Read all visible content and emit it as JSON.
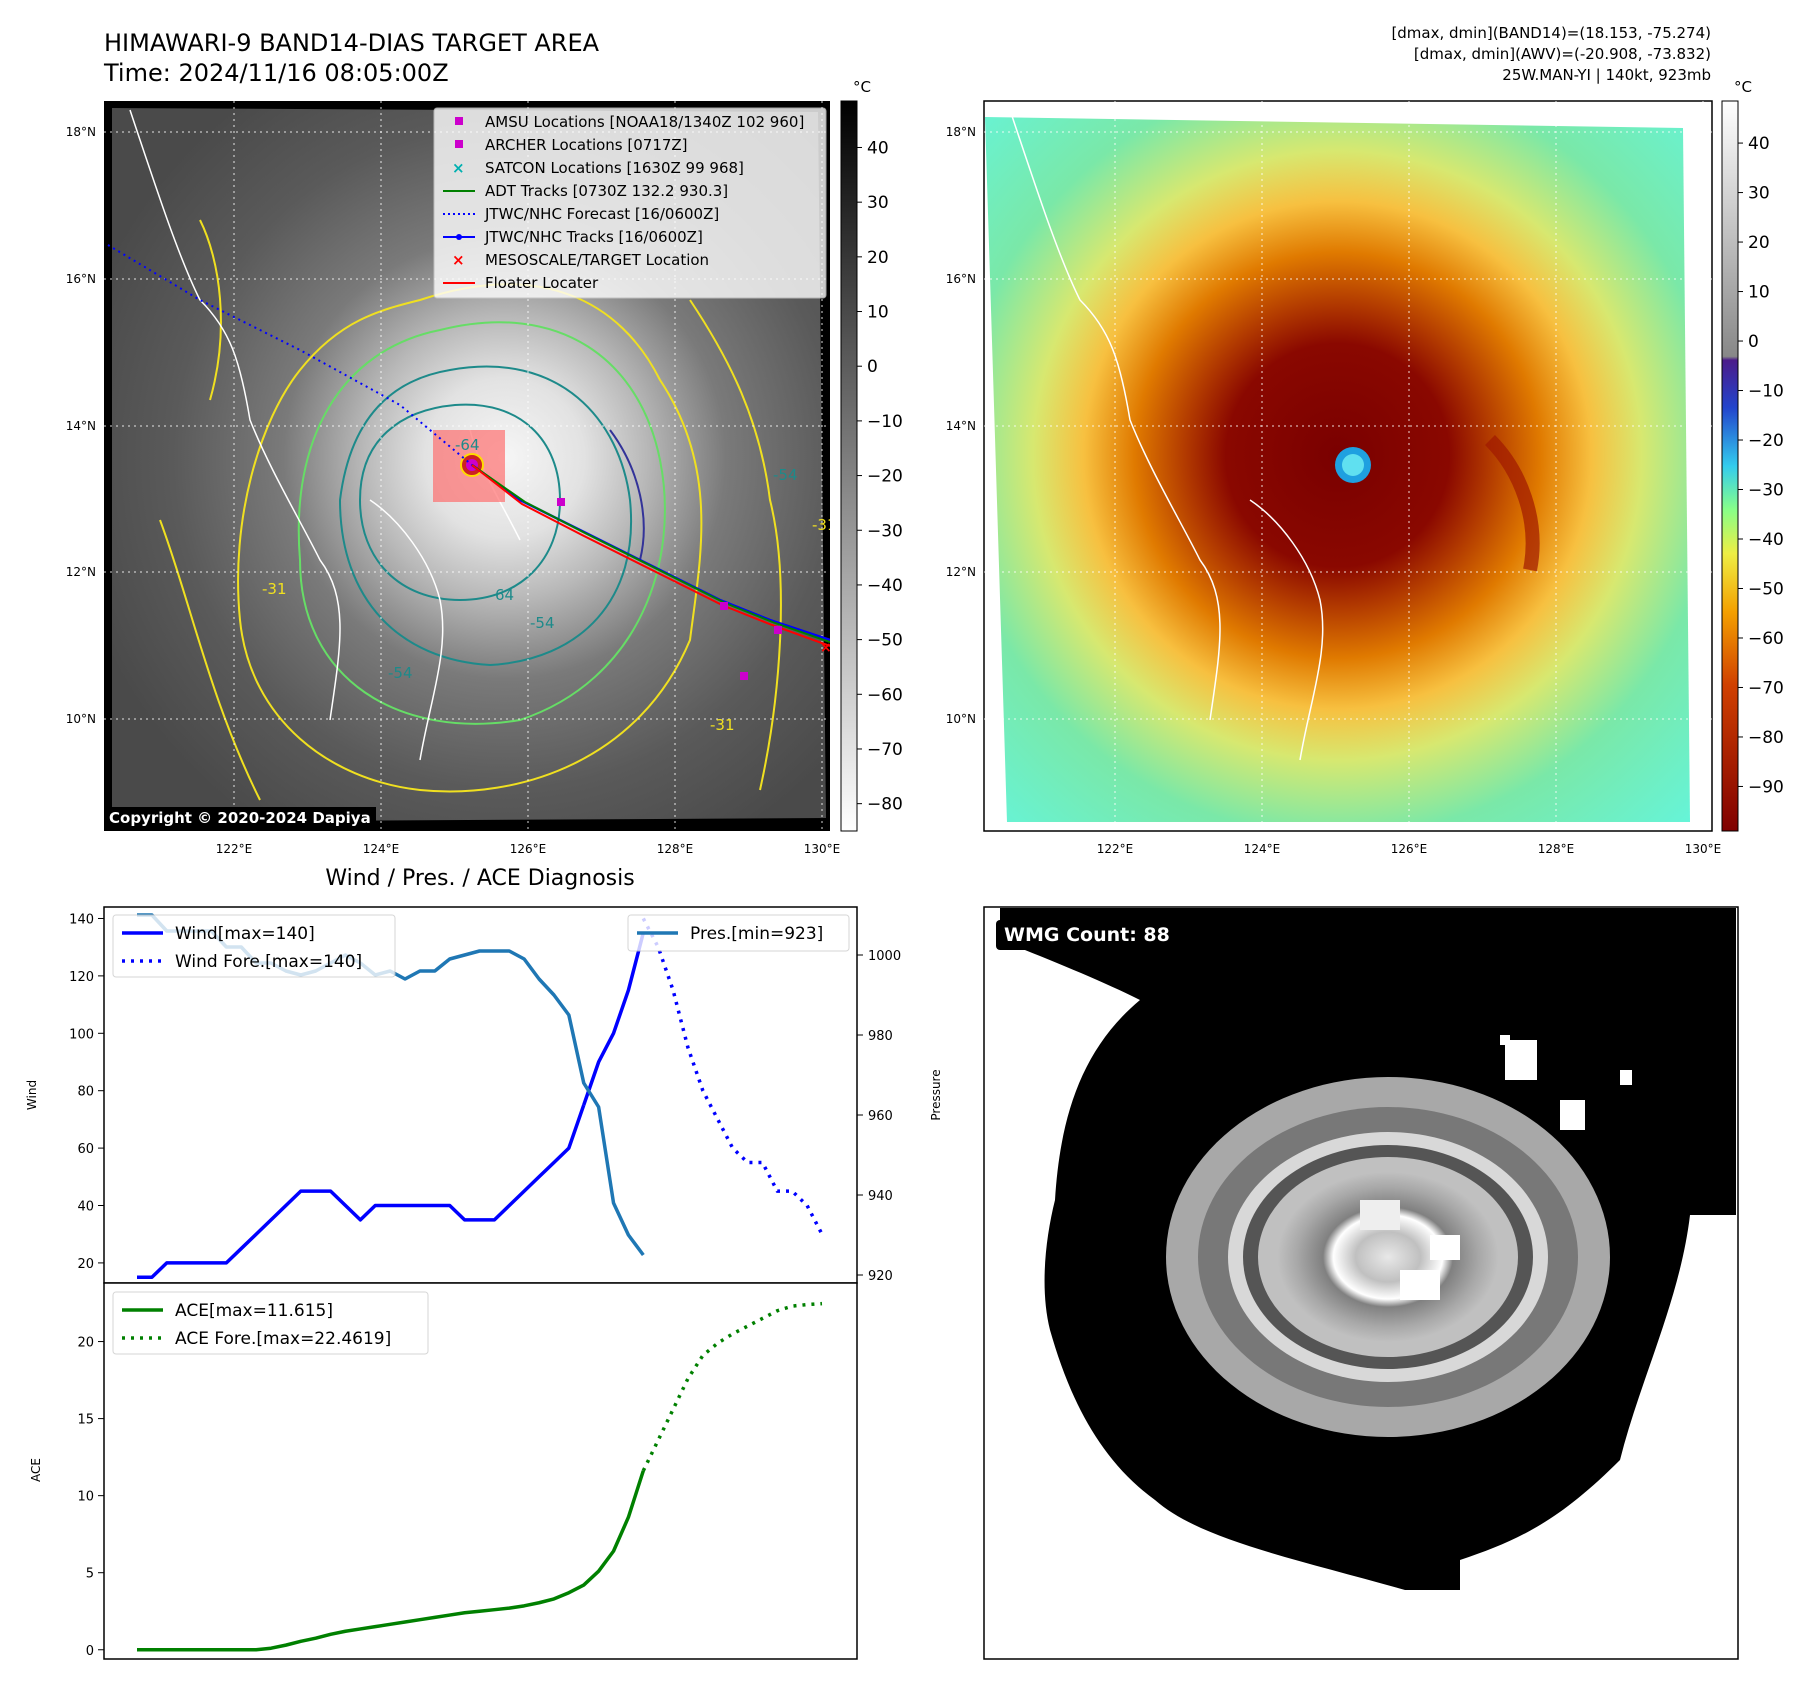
{
  "header": {
    "title_line1": "HIMAWARI-9 BAND14-DIAS TARGET AREA",
    "title_line2": "Time: 2024/11/16 08:05:00Z",
    "info_line1": "[dmax, dmin](BAND14)=(18.153, -75.274)",
    "info_line2": "[dmax, dmin](AWV)=(-20.908, -73.832)",
    "info_line3": "25W.MAN-YI | 140kt, 923mb"
  },
  "copyright": "Copyright © 2020-2024 Dapiya",
  "map": {
    "lat_labels": [
      "18°N",
      "16°N",
      "14°N",
      "12°N",
      "10°N"
    ],
    "lon_labels": [
      "122°E",
      "124°E",
      "126°E",
      "128°E",
      "130°E"
    ],
    "contour_labels": [
      "-64",
      "-54",
      "-54",
      "64",
      "-54",
      "-31",
      "-31",
      "-31"
    ],
    "legend": [
      {
        "label": "AMSU Locations [NOAA18/1340Z 102 960]",
        "color": "#cc00cc",
        "marker": "square"
      },
      {
        "label": "ARCHER Locations [0717Z]",
        "color": "#cc00cc",
        "marker": "square"
      },
      {
        "label": "SATCON Locations [1630Z 99 968]",
        "color": "#00b0b0",
        "marker": "x"
      },
      {
        "label": "ADT Tracks [0730Z 132.2 930.3]",
        "color": "#008000",
        "marker": "line"
      },
      {
        "label": "JTWC/NHC Forecast [16/0600Z]",
        "color": "#0000ff",
        "marker": "dotted"
      },
      {
        "label": "JTWC/NHC Tracks [16/0600Z]",
        "color": "#0000ff",
        "marker": "dotline"
      },
      {
        "label": "MESOSCALE/TARGET Location",
        "color": "#ff0000",
        "marker": "x"
      },
      {
        "label": "Floater Locater",
        "color": "#ff0000",
        "marker": "line"
      }
    ],
    "left_colorbar": {
      "unit": "°C",
      "ticks": [
        "40",
        "30",
        "20",
        "10",
        "0",
        "−10",
        "−20",
        "−30",
        "−40",
        "−50",
        "−60",
        "−70",
        "−80"
      ]
    },
    "right_colorbar": {
      "unit": "°C",
      "ticks": [
        "40",
        "30",
        "20",
        "10",
        "0",
        "−10",
        "−20",
        "−30",
        "−40",
        "−50",
        "−60",
        "−70",
        "−80",
        "−90"
      ]
    }
  },
  "diagnosis_title": "Wind / Pres. / ACE Diagnosis",
  "wmg_badge": "WMG Count: 88",
  "chart_data": [
    {
      "type": "line",
      "title": "Wind / Pres. / ACE Diagnosis",
      "ylabel": "Wind",
      "ylabel_right": "Pressure",
      "ylim": [
        13,
        144
      ],
      "ylim_right": [
        918,
        1012
      ],
      "y_ticks": [
        "140",
        "120",
        "100",
        "80",
        "60",
        "40",
        "20"
      ],
      "y_ticks_right": [
        "1000",
        "980",
        "960",
        "940",
        "920"
      ],
      "x": [
        0,
        1,
        2,
        3,
        4,
        5,
        6,
        7,
        8,
        9,
        10,
        11,
        12,
        13,
        14,
        15,
        16,
        17,
        18,
        19,
        20,
        21,
        22,
        23,
        24,
        25,
        26,
        27,
        28,
        29,
        30,
        31,
        32,
        33,
        34,
        35,
        36,
        37,
        38,
        39,
        40,
        41,
        42,
        43,
        44,
        45,
        46
      ],
      "series": [
        {
          "name": "Wind",
          "legend": "Wind[max=140]",
          "color": "#0000ff",
          "style": "solid",
          "x": [
            0,
            1,
            2,
            3,
            4,
            5,
            6,
            7,
            8,
            9,
            10,
            11,
            12,
            13,
            14,
            15,
            16,
            17,
            18,
            19,
            20,
            21,
            22,
            23,
            24,
            25,
            26,
            27,
            28,
            29,
            30
          ],
          "values": [
            15,
            15,
            20,
            20,
            20,
            20,
            20,
            25,
            30,
            35,
            40,
            45,
            45,
            45,
            40,
            35,
            40,
            40,
            40,
            40,
            40,
            40,
            35,
            35,
            35,
            40,
            45,
            50,
            55,
            60,
            75
          ]
        },
        {
          "name": "Wind cont.",
          "color": "#0000ff",
          "style": "solid",
          "x": [
            30,
            31,
            32,
            33,
            34
          ],
          "values": [
            75,
            90,
            100,
            115,
            135
          ]
        },
        {
          "name": "Wind Fore.",
          "legend": "Wind Fore.[max=140]",
          "color": "#0000ff",
          "style": "dotted",
          "x": [
            34,
            35,
            36,
            37,
            38,
            39,
            40,
            41,
            42,
            43,
            44,
            45,
            46
          ],
          "values": [
            140,
            130,
            115,
            95,
            80,
            70,
            60,
            55,
            55,
            45,
            45,
            40,
            30
          ]
        },
        {
          "name": "Pres.",
          "legend": "Pres.[min=923]",
          "color": "#1f77b4",
          "axis": "right",
          "x": [
            0,
            1,
            2,
            3,
            4,
            5,
            6,
            7,
            8,
            9,
            10,
            11,
            12,
            13,
            14,
            15,
            16,
            17,
            18,
            19,
            20,
            21,
            22,
            23,
            24,
            25,
            26,
            27,
            28,
            29,
            30,
            31,
            32,
            33,
            34
          ],
          "values": [
            1010,
            1010,
            1006,
            1006,
            1006,
            1006,
            1002,
            1002,
            998,
            998,
            996,
            995,
            996,
            998,
            1000,
            998,
            995,
            996,
            994,
            996,
            996,
            999,
            1000,
            1001,
            1001,
            1001,
            999,
            994,
            990,
            985,
            968,
            962,
            938,
            930,
            925
          ]
        }
      ]
    },
    {
      "type": "line",
      "ylabel": "ACE",
      "ylim": [
        -0.6,
        23.8
      ],
      "y_ticks": [
        "20",
        "15",
        "10",
        "5",
        "0"
      ],
      "series": [
        {
          "name": "ACE",
          "legend": "ACE[max=11.615]",
          "color": "#008000",
          "style": "solid",
          "x": [
            0,
            1,
            2,
            3,
            4,
            5,
            6,
            7,
            8,
            9,
            10,
            11,
            12,
            13,
            14,
            15,
            16,
            17,
            18,
            19,
            20,
            21,
            22,
            23,
            24,
            25,
            26,
            27,
            28,
            29,
            30,
            31,
            32,
            33,
            34
          ],
          "values": [
            0,
            0,
            0,
            0,
            0,
            0,
            0,
            0,
            0,
            0.1,
            0.3,
            0.55,
            0.75,
            1.0,
            1.2,
            1.35,
            1.5,
            1.65,
            1.8,
            1.95,
            2.1,
            2.25,
            2.4,
            2.5,
            2.6,
            2.7,
            2.85,
            3.05,
            3.3,
            3.7,
            4.2,
            5.1,
            6.4,
            8.6,
            11.615
          ]
        },
        {
          "name": "ACE Fore.",
          "legend": "ACE Fore.[max=22.4619]",
          "color": "#008000",
          "style": "dotted",
          "x": [
            34,
            35,
            36,
            37,
            38,
            39,
            40,
            41,
            42,
            43,
            44,
            45,
            46
          ],
          "values": [
            11.615,
            13.6,
            15.6,
            17.6,
            19.1,
            19.9,
            20.5,
            21.0,
            21.5,
            22.0,
            22.3,
            22.4,
            22.4619
          ]
        }
      ]
    }
  ]
}
